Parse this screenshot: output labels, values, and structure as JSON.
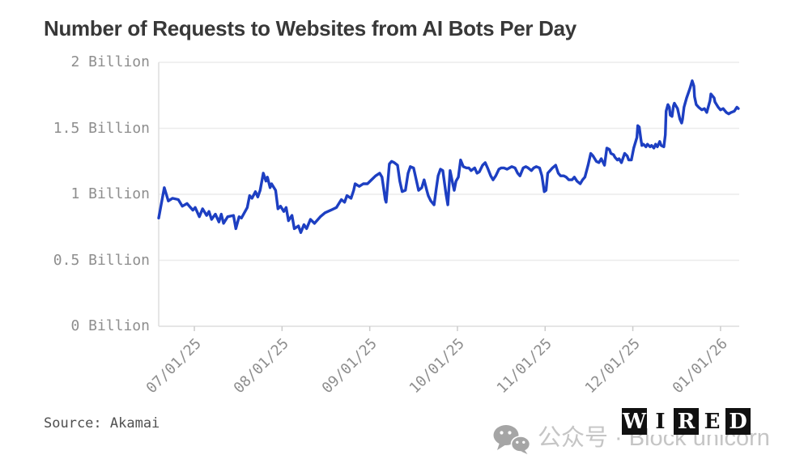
{
  "header": {
    "title": "Number of Requests to Websites from AI Bots Per Day"
  },
  "footer": {
    "source": "Source: Akamai",
    "watermark": {
      "icon": "wechat-icon",
      "text": "公众号 · Block unicorn"
    },
    "wired_logo": {
      "text": "WIRED",
      "letters": [
        {
          "ch": "W",
          "inverted": true
        },
        {
          "ch": "I",
          "inverted": false
        },
        {
          "ch": "R",
          "inverted": true
        },
        {
          "ch": "E",
          "inverted": false
        },
        {
          "ch": "D",
          "inverted": true
        }
      ]
    }
  },
  "colors": {
    "background": "#ffffff",
    "line": "#1d3fc2",
    "grid": "#ececec",
    "axis": "#dddddd",
    "tick": "#cccccc",
    "axis_text": "#8e8e8e",
    "title_text": "#383838",
    "source_text": "#4f4f4f",
    "watermark_gray": "#c5c5c5",
    "logo_black": "#111111"
  },
  "chart_data": {
    "type": "line",
    "title": "Number of Requests to Websites from AI Bots Per Day",
    "unit": "requests per day (billions)",
    "source": "Akamai",
    "legend": "none",
    "grid": "horizontal-only",
    "y_axis": {
      "range_billions": [
        0,
        2
      ],
      "ticks": [
        {
          "label": "0 Billion",
          "value": 0
        },
        {
          "label": "0.5 Billion",
          "value": 0.5
        },
        {
          "label": "1 Billion",
          "value": 1
        },
        {
          "label": "1.5 Billion",
          "value": 1.5
        },
        {
          "label": "2 Billion",
          "value": 2
        }
      ]
    },
    "x_axis": {
      "domain_days": [
        0,
        198.6
      ],
      "start_date_approx": "06/19/25",
      "end_date_approx": "01/07/26",
      "ticks": [
        {
          "label": "07/01/25",
          "day": 12.2
        },
        {
          "label": "08/01/25",
          "day": 42.2
        },
        {
          "label": "09/01/25",
          "day": 72.2
        },
        {
          "label": "10/01/25",
          "day": 102.2
        },
        {
          "label": "11/01/25",
          "day": 132.2
        },
        {
          "label": "12/01/25",
          "day": 162.2
        },
        {
          "label": "01/01/26",
          "day": 192.2
        }
      ]
    },
    "series": [
      {
        "name": "AI bot requests to websites",
        "color": "#1d3fc2",
        "points_day_value_billions": [
          [
            0,
            0.82
          ],
          [
            1.9,
            1.05
          ],
          [
            3.3,
            0.95
          ],
          [
            4.7,
            0.97
          ],
          [
            6.7,
            0.96
          ],
          [
            8.1,
            0.91
          ],
          [
            9.7,
            0.93
          ],
          [
            11.7,
            0.88
          ],
          [
            12.5,
            0.9
          ],
          [
            13.9,
            0.83
          ],
          [
            15,
            0.89
          ],
          [
            16.4,
            0.84
          ],
          [
            17.2,
            0.87
          ],
          [
            18.1,
            0.81
          ],
          [
            19.4,
            0.85
          ],
          [
            20.6,
            0.79
          ],
          [
            21.4,
            0.85
          ],
          [
            22.2,
            0.78
          ],
          [
            23.6,
            0.83
          ],
          [
            25.6,
            0.84
          ],
          [
            26.4,
            0.74
          ],
          [
            27.5,
            0.83
          ],
          [
            28.3,
            0.82
          ],
          [
            30.3,
            0.9
          ],
          [
            31.1,
            0.99
          ],
          [
            31.9,
            0.97
          ],
          [
            33.1,
            1.02
          ],
          [
            33.9,
            0.98
          ],
          [
            34.7,
            1.03
          ],
          [
            35.8,
            1.16
          ],
          [
            36.7,
            1.1
          ],
          [
            37.2,
            1.13
          ],
          [
            38.1,
            1.05
          ],
          [
            38.6,
            1.08
          ],
          [
            40,
            1.03
          ],
          [
            40.8,
            0.89
          ],
          [
            41.7,
            0.91
          ],
          [
            42.8,
            0.87
          ],
          [
            43.6,
            0.9
          ],
          [
            44.4,
            0.8
          ],
          [
            45.6,
            0.84
          ],
          [
            46.4,
            0.74
          ],
          [
            47.8,
            0.76
          ],
          [
            48.6,
            0.71
          ],
          [
            49.7,
            0.77
          ],
          [
            50.6,
            0.74
          ],
          [
            51.9,
            0.81
          ],
          [
            53.3,
            0.78
          ],
          [
            55.3,
            0.83
          ],
          [
            56.9,
            0.86
          ],
          [
            58.9,
            0.88
          ],
          [
            60.8,
            0.9
          ],
          [
            62.5,
            0.96
          ],
          [
            63.6,
            0.94
          ],
          [
            64.4,
            0.99
          ],
          [
            65.8,
            0.97
          ],
          [
            66.7,
            1.03
          ],
          [
            67.2,
            1.08
          ],
          [
            68.6,
            1.06
          ],
          [
            70,
            1.08
          ],
          [
            71.4,
            1.08
          ],
          [
            72.8,
            1.11
          ],
          [
            74.2,
            1.14
          ],
          [
            75.6,
            1.16
          ],
          [
            76.4,
            1.13
          ],
          [
            77.5,
            0.96
          ],
          [
            77.8,
            0.94
          ],
          [
            78.9,
            1.23
          ],
          [
            79.7,
            1.25
          ],
          [
            80.6,
            1.24
          ],
          [
            81.7,
            1.22
          ],
          [
            82.5,
            1.1
          ],
          [
            83.3,
            1.02
          ],
          [
            84.4,
            1.03
          ],
          [
            85.3,
            1.16
          ],
          [
            86.1,
            1.21
          ],
          [
            87.2,
            1.2
          ],
          [
            88.1,
            1.11
          ],
          [
            88.9,
            1.03
          ],
          [
            90,
            1.05
          ],
          [
            90.8,
            1.11
          ],
          [
            91.7,
            1.03
          ],
          [
            92.2,
            0.99
          ],
          [
            93.1,
            0.95
          ],
          [
            94.2,
            0.92
          ],
          [
            95,
            1.05
          ],
          [
            95.6,
            1.14
          ],
          [
            96.4,
            1.19
          ],
          [
            97.2,
            1.18
          ],
          [
            98.3,
            1
          ],
          [
            98.9,
            0.92
          ],
          [
            99.7,
            1.18
          ],
          [
            100.6,
            1.08
          ],
          [
            101.1,
            1.03
          ],
          [
            101.7,
            1.1
          ],
          [
            102.5,
            1.13
          ],
          [
            103.3,
            1.26
          ],
          [
            104.2,
            1.21
          ],
          [
            105.3,
            1.2
          ],
          [
            106.1,
            1.2
          ],
          [
            106.9,
            1.18
          ],
          [
            108.1,
            1.2
          ],
          [
            108.9,
            1.16
          ],
          [
            109.7,
            1.17
          ],
          [
            110.8,
            1.22
          ],
          [
            111.7,
            1.24
          ],
          [
            112.5,
            1.2
          ],
          [
            113.6,
            1.14
          ],
          [
            114.4,
            1.11
          ],
          [
            115.3,
            1.14
          ],
          [
            116.4,
            1.19
          ],
          [
            117.2,
            1.2
          ],
          [
            118.1,
            1.2
          ],
          [
            119.2,
            1.19
          ],
          [
            120,
            1.2
          ],
          [
            120.8,
            1.21
          ],
          [
            121.9,
            1.2
          ],
          [
            122.8,
            1.16
          ],
          [
            123.6,
            1.14
          ],
          [
            124.7,
            1.2
          ],
          [
            125.6,
            1.21
          ],
          [
            126.4,
            1.2
          ],
          [
            127.5,
            1.18
          ],
          [
            128.3,
            1.2
          ],
          [
            129.2,
            1.21
          ],
          [
            130.3,
            1.2
          ],
          [
            131.1,
            1.14
          ],
          [
            131.9,
            1.02
          ],
          [
            132.5,
            1.03
          ],
          [
            133.1,
            1.16
          ],
          [
            133.9,
            1.18
          ],
          [
            134.7,
            1.2
          ],
          [
            135.8,
            1.22
          ],
          [
            136.7,
            1.16
          ],
          [
            137.5,
            1.14
          ],
          [
            138.6,
            1.14
          ],
          [
            139.4,
            1.13
          ],
          [
            140.3,
            1.11
          ],
          [
            141.4,
            1.11
          ],
          [
            142.2,
            1.13
          ],
          [
            143.1,
            1.1
          ],
          [
            144.2,
            1.08
          ],
          [
            145,
            1.11
          ],
          [
            145.8,
            1.13
          ],
          [
            146.9,
            1.22
          ],
          [
            147.8,
            1.31
          ],
          [
            148.6,
            1.29
          ],
          [
            149.7,
            1.25
          ],
          [
            150.6,
            1.24
          ],
          [
            151.4,
            1.27
          ],
          [
            152.5,
            1.22
          ],
          [
            153.3,
            1.35
          ],
          [
            154.2,
            1.34
          ],
          [
            154.7,
            1.31
          ],
          [
            155.6,
            1.3
          ],
          [
            156.1,
            1.28
          ],
          [
            156.9,
            1.26
          ],
          [
            157.5,
            1.27
          ],
          [
            158.3,
            1.24
          ],
          [
            159.4,
            1.31
          ],
          [
            160.3,
            1.29
          ],
          [
            160.8,
            1.26
          ],
          [
            161.7,
            1.26
          ],
          [
            162.5,
            1.35
          ],
          [
            163.6,
            1.43
          ],
          [
            163.9,
            1.52
          ],
          [
            164.4,
            1.51
          ],
          [
            165,
            1.41
          ],
          [
            165.3,
            1.37
          ],
          [
            165.8,
            1.38
          ],
          [
            166.7,
            1.36
          ],
          [
            167.2,
            1.38
          ],
          [
            168.1,
            1.36
          ],
          [
            168.6,
            1.37
          ],
          [
            169.4,
            1.35
          ],
          [
            170,
            1.38
          ],
          [
            170.6,
            1.36
          ],
          [
            171.4,
            1.4
          ],
          [
            171.9,
            1.37
          ],
          [
            172.8,
            1.36
          ],
          [
            173.3,
            1.45
          ],
          [
            173.6,
            1.63
          ],
          [
            174.2,
            1.68
          ],
          [
            174.7,
            1.66
          ],
          [
            175,
            1.6
          ],
          [
            175.6,
            1.59
          ],
          [
            176.1,
            1.67
          ],
          [
            176.4,
            1.69
          ],
          [
            177.5,
            1.65
          ],
          [
            178.3,
            1.57
          ],
          [
            178.9,
            1.54
          ],
          [
            179.2,
            1.57
          ],
          [
            179.7,
            1.66
          ],
          [
            180.6,
            1.73
          ],
          [
            181.7,
            1.8
          ],
          [
            182.5,
            1.86
          ],
          [
            183.1,
            1.82
          ],
          [
            183.3,
            1.74
          ],
          [
            183.9,
            1.68
          ],
          [
            184.7,
            1.66
          ],
          [
            185.8,
            1.64
          ],
          [
            186.7,
            1.65
          ],
          [
            187.5,
            1.62
          ],
          [
            188.6,
            1.71
          ],
          [
            188.9,
            1.76
          ],
          [
            190,
            1.73
          ],
          [
            190.3,
            1.7
          ],
          [
            191.4,
            1.66
          ],
          [
            192.2,
            1.64
          ],
          [
            193.1,
            1.65
          ],
          [
            194.2,
            1.62
          ],
          [
            195,
            1.61
          ],
          [
            195.8,
            1.62
          ],
          [
            196.9,
            1.63
          ],
          [
            197.8,
            1.66
          ],
          [
            198.3,
            1.65
          ]
        ]
      }
    ]
  }
}
